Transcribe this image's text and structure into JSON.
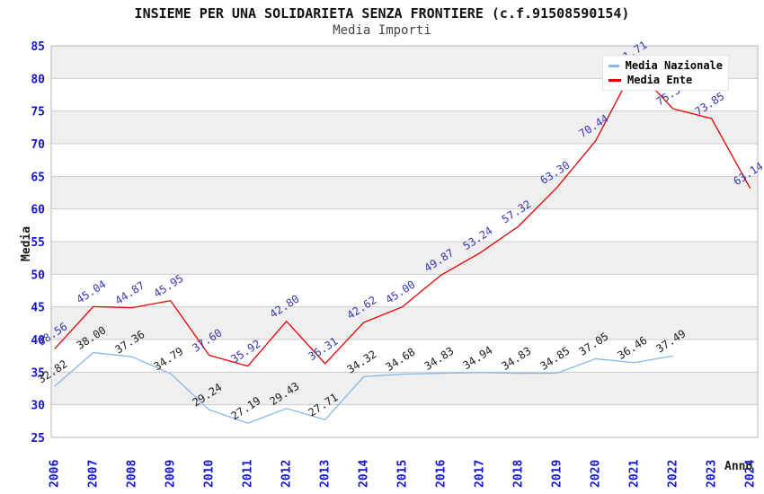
{
  "header": {
    "title": "INSIEME PER UNA SOLIDARIETA SENZA FRONTIERE (c.f.91508590154)",
    "subtitle": "Media Importi"
  },
  "legend": {
    "items": [
      {
        "label": "Media Nazionale",
        "color": "#8ab6e4"
      },
      {
        "label": "Media Ente",
        "color": "#e60000"
      }
    ]
  },
  "chart_data": {
    "type": "line",
    "x": [
      2006,
      2007,
      2008,
      2009,
      2010,
      2011,
      2012,
      2013,
      2014,
      2015,
      2016,
      2017,
      2018,
      2019,
      2020,
      2021,
      2022,
      2023,
      2024
    ],
    "xlabel": "Anno",
    "ylabel": "Media",
    "ylim": [
      25,
      85
    ],
    "ytick_step": 5,
    "grid": true,
    "legend_position": "top-right",
    "series": [
      {
        "name": "Media Nazionale",
        "color": "#8ab6e4",
        "label_color": "#1a1a1a",
        "values": [
          32.82,
          38.0,
          37.36,
          34.79,
          29.24,
          27.19,
          29.43,
          27.71,
          34.32,
          34.68,
          34.83,
          34.94,
          34.83,
          34.85,
          37.05,
          36.46,
          37.49,
          null,
          null
        ]
      },
      {
        "name": "Media Ente",
        "color": "#e60000",
        "label_color": "#3535b4",
        "values": [
          38.56,
          45.04,
          44.87,
          45.95,
          37.6,
          35.92,
          42.8,
          36.31,
          42.62,
          45.0,
          49.87,
          53.24,
          57.32,
          63.3,
          70.44,
          81.71,
          75.36,
          73.85,
          63.14
        ]
      }
    ]
  },
  "colors": {
    "tick_label": "#1414d2",
    "axis_title": "#1a1a1a",
    "gridline": "#cccccc",
    "plot_border": "#b5b5b5",
    "band_gray": "#efefef",
    "band_white": "#ffffff"
  }
}
